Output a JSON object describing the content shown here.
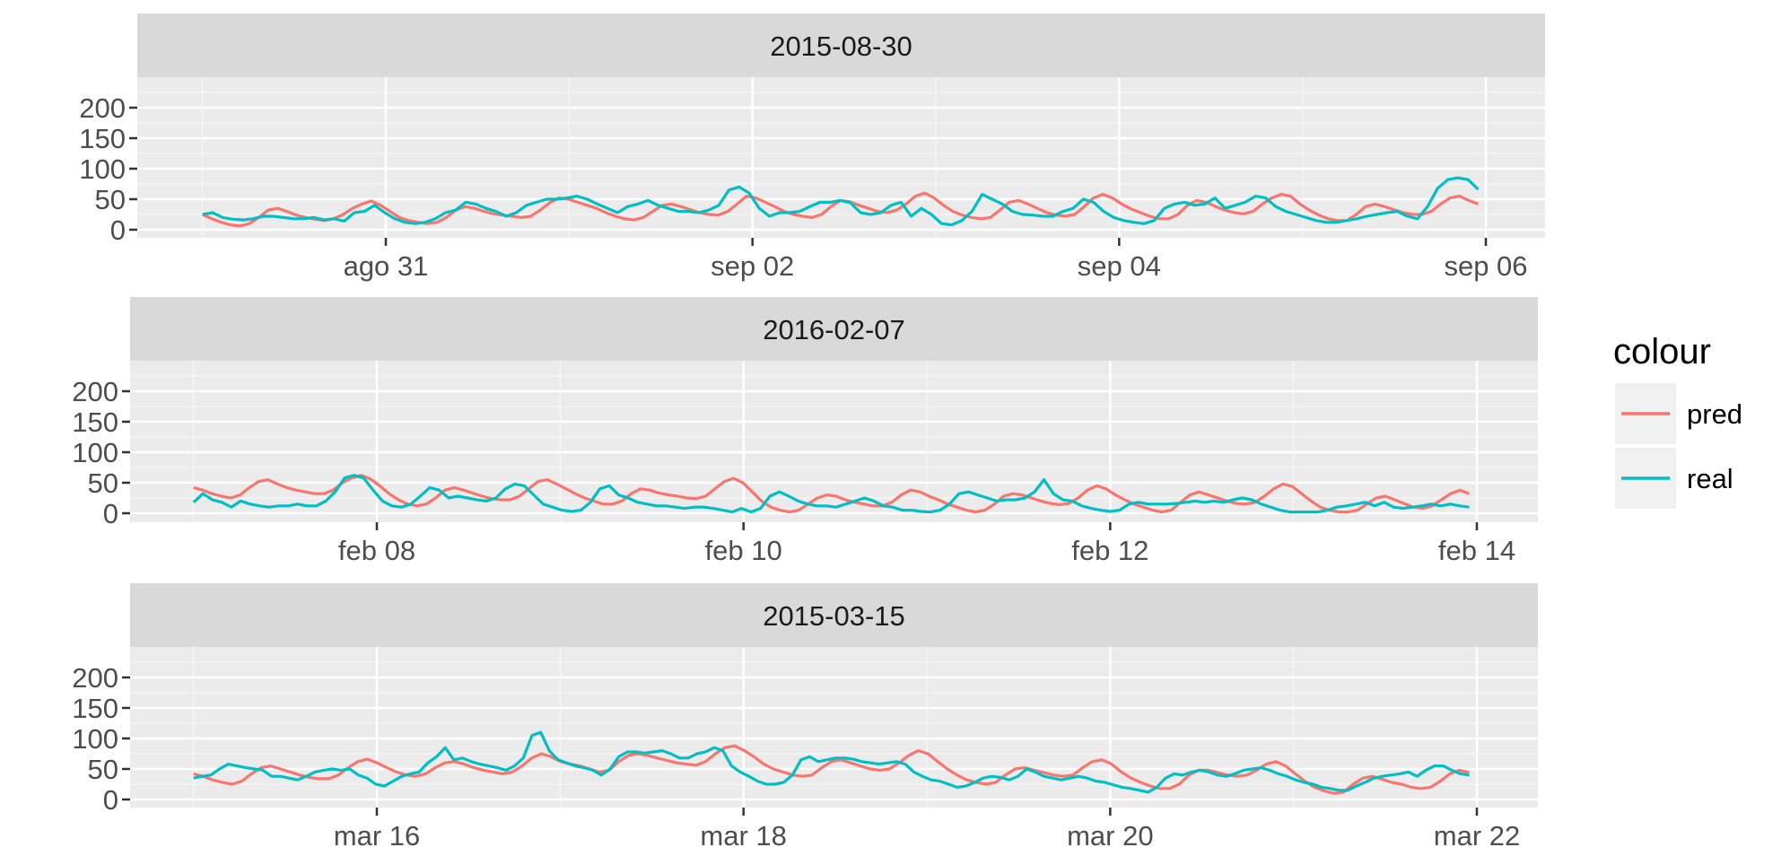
{
  "legend": {
    "title": "colour",
    "items": [
      {
        "label": "pred",
        "color": "#F8766D"
      },
      {
        "label": "real",
        "color": "#00BFC4"
      }
    ]
  },
  "chart_data": [
    {
      "type": "line",
      "title": "2015-08-30",
      "y_ticks": [
        0,
        50,
        100,
        150,
        200
      ],
      "ylim": [
        0,
        240
      ],
      "x_start": "2015-08-30 00:00",
      "x_end": "2015-09-05 23:00",
      "x_ticks": [
        {
          "at": "2015-08-31 00:00",
          "label": "ago 31"
        },
        {
          "at": "2015-09-02 00:00",
          "label": "sep 02"
        },
        {
          "at": "2015-09-04 00:00",
          "label": "sep 04"
        },
        {
          "at": "2015-09-06 00:00",
          "label": "sep 06"
        }
      ],
      "grid": true,
      "series": [
        {
          "name": "pred",
          "color": "#F8766D",
          "values": [
            25,
            18,
            12,
            8,
            6,
            10,
            20,
            32,
            35,
            30,
            24,
            20,
            17,
            15,
            18,
            25,
            35,
            42,
            47,
            40,
            30,
            20,
            15,
            12,
            10,
            12,
            20,
            32,
            38,
            35,
            30,
            26,
            24,
            22,
            20,
            22,
            32,
            44,
            52,
            50,
            45,
            40,
            35,
            28,
            22,
            18,
            16,
            20,
            30,
            40,
            42,
            38,
            33,
            28,
            25,
            24,
            30,
            42,
            55,
            52,
            45,
            38,
            30,
            25,
            22,
            20,
            25,
            38,
            48,
            46,
            40,
            35,
            30,
            28,
            32,
            42,
            55,
            60,
            52,
            40,
            30,
            24,
            20,
            18,
            20,
            32,
            45,
            48,
            42,
            35,
            28,
            24,
            22,
            25,
            38,
            52,
            58,
            52,
            42,
            34,
            28,
            22,
            18,
            18,
            25,
            40,
            48,
            45,
            38,
            32,
            28,
            26,
            30,
            42,
            52,
            58,
            55,
            42,
            32,
            24,
            18,
            15,
            15,
            25,
            38,
            42,
            38,
            33,
            28,
            25,
            25,
            30,
            42,
            52,
            55,
            48,
            42
          ]
        },
        {
          "name": "real",
          "color": "#00BFC4",
          "values": [
            25,
            28,
            20,
            17,
            16,
            18,
            22,
            22,
            20,
            18,
            18,
            20,
            16,
            18,
            14,
            28,
            30,
            40,
            28,
            18,
            12,
            10,
            12,
            18,
            28,
            32,
            45,
            42,
            35,
            30,
            22,
            28,
            40,
            45,
            50,
            50,
            52,
            55,
            50,
            42,
            35,
            28,
            38,
            42,
            48,
            40,
            35,
            30,
            30,
            28,
            32,
            40,
            65,
            70,
            60,
            35,
            22,
            28,
            28,
            30,
            38,
            45,
            45,
            48,
            44,
            28,
            25,
            28,
            40,
            45,
            22,
            35,
            25,
            10,
            8,
            15,
            30,
            58,
            50,
            42,
            30,
            25,
            24,
            22,
            22,
            30,
            35,
            50,
            45,
            30,
            20,
            15,
            12,
            10,
            15,
            35,
            42,
            45,
            40,
            42,
            52,
            35,
            40,
            45,
            55,
            52,
            38,
            30,
            25,
            20,
            15,
            12,
            12,
            15,
            18,
            22,
            25,
            28,
            30,
            22,
            18,
            38,
            68,
            82,
            85,
            82,
            66
          ]
        }
      ]
    },
    {
      "type": "line",
      "title": "2016-02-07",
      "y_ticks": [
        0,
        50,
        100,
        150,
        200
      ],
      "ylim": [
        0,
        240
      ],
      "x_start": "2016-02-07 00:00",
      "x_end": "2016-02-13 23:00",
      "x_ticks": [
        {
          "at": "2016-02-08 00:00",
          "label": "feb 08"
        },
        {
          "at": "2016-02-10 00:00",
          "label": "feb 10"
        },
        {
          "at": "2016-02-12 00:00",
          "label": "feb 12"
        },
        {
          "at": "2016-02-14 00:00",
          "label": "feb 14"
        }
      ],
      "grid": true,
      "series": [
        {
          "name": "pred",
          "color": "#F8766D",
          "values": [
            42,
            38,
            32,
            28,
            25,
            30,
            42,
            52,
            55,
            48,
            42,
            38,
            35,
            32,
            32,
            38,
            50,
            58,
            62,
            56,
            45,
            32,
            22,
            15,
            12,
            15,
            25,
            38,
            42,
            38,
            33,
            28,
            24,
            22,
            22,
            28,
            40,
            52,
            55,
            48,
            40,
            32,
            25,
            20,
            15,
            15,
            20,
            32,
            40,
            38,
            33,
            30,
            28,
            25,
            24,
            28,
            40,
            52,
            57,
            50,
            35,
            20,
            10,
            5,
            2,
            5,
            15,
            25,
            30,
            28,
            22,
            18,
            15,
            12,
            12,
            18,
            30,
            38,
            35,
            28,
            22,
            15,
            10,
            5,
            2,
            5,
            15,
            28,
            32,
            30,
            25,
            20,
            16,
            14,
            16,
            25,
            38,
            45,
            40,
            30,
            22,
            15,
            10,
            5,
            2,
            5,
            18,
            30,
            35,
            30,
            25,
            20,
            16,
            15,
            18,
            28,
            40,
            48,
            44,
            32,
            20,
            10,
            5,
            2,
            2,
            5,
            15,
            25,
            28,
            22,
            16,
            10,
            8,
            12,
            22,
            32,
            38,
            32
          ]
        },
        {
          "name": "real",
          "color": "#00BFC4",
          "values": [
            18,
            32,
            22,
            18,
            10,
            20,
            15,
            12,
            10,
            12,
            12,
            15,
            12,
            12,
            20,
            35,
            58,
            62,
            58,
            38,
            20,
            12,
            10,
            15,
            28,
            42,
            38,
            25,
            28,
            25,
            22,
            20,
            25,
            40,
            48,
            45,
            30,
            15,
            10,
            5,
            3,
            5,
            18,
            40,
            45,
            30,
            25,
            18,
            15,
            12,
            12,
            10,
            8,
            10,
            10,
            8,
            5,
            2,
            8,
            2,
            8,
            28,
            35,
            28,
            20,
            15,
            12,
            12,
            10,
            15,
            20,
            25,
            20,
            12,
            10,
            5,
            5,
            3,
            2,
            5,
            15,
            32,
            35,
            30,
            25,
            20,
            22,
            22,
            25,
            35,
            55,
            32,
            22,
            20,
            12,
            8,
            5,
            3,
            5,
            15,
            18,
            15,
            15,
            15,
            16,
            18,
            20,
            18,
            20,
            18,
            22,
            25,
            22,
            15,
            10,
            5,
            2,
            2,
            2,
            2,
            5,
            10,
            12,
            15,
            18,
            12,
            18,
            10,
            8,
            10,
            12,
            15,
            12,
            15,
            12,
            10
          ]
        }
      ]
    },
    {
      "type": "line",
      "title": "2015-03-15",
      "y_ticks": [
        0,
        50,
        100,
        150,
        200
      ],
      "ylim": [
        0,
        240
      ],
      "x_start": "2015-03-15 00:00",
      "x_end": "2015-03-21 23:00",
      "x_ticks": [
        {
          "at": "2015-03-16 00:00",
          "label": "mar 16"
        },
        {
          "at": "2015-03-18 00:00",
          "label": "mar 18"
        },
        {
          "at": "2015-03-20 00:00",
          "label": "mar 20"
        },
        {
          "at": "2015-03-22 00:00",
          "label": "mar 22"
        }
      ],
      "grid": true,
      "series": [
        {
          "name": "pred",
          "color": "#F8766D",
          "values": [
            42,
            38,
            32,
            28,
            25,
            30,
            42,
            52,
            55,
            50,
            45,
            40,
            36,
            34,
            34,
            40,
            52,
            62,
            66,
            60,
            52,
            45,
            40,
            38,
            42,
            52,
            60,
            62,
            58,
            52,
            48,
            45,
            42,
            45,
            55,
            68,
            75,
            70,
            62,
            58,
            55,
            50,
            45,
            48,
            62,
            72,
            75,
            72,
            68,
            64,
            60,
            58,
            56,
            62,
            75,
            85,
            88,
            80,
            70,
            58,
            50,
            45,
            40,
            38,
            40,
            52,
            62,
            65,
            60,
            55,
            50,
            48,
            50,
            60,
            72,
            80,
            75,
            62,
            50,
            40,
            32,
            28,
            25,
            28,
            40,
            50,
            52,
            48,
            44,
            40,
            38,
            40,
            52,
            62,
            65,
            58,
            45,
            35,
            28,
            22,
            18,
            18,
            25,
            40,
            48,
            48,
            44,
            40,
            38,
            40,
            48,
            58,
            62,
            55,
            42,
            30,
            20,
            14,
            10,
            12,
            25,
            35,
            38,
            33,
            28,
            25,
            20,
            18,
            20,
            30,
            42,
            48,
            44
          ]
        },
        {
          "name": "real",
          "color": "#00BFC4",
          "values": [
            35,
            38,
            40,
            50,
            58,
            55,
            52,
            50,
            48,
            38,
            38,
            35,
            32,
            38,
            45,
            48,
            50,
            48,
            50,
            40,
            35,
            25,
            22,
            30,
            38,
            42,
            45,
            60,
            70,
            85,
            65,
            68,
            62,
            58,
            55,
            52,
            48,
            55,
            68,
            105,
            110,
            80,
            65,
            60,
            55,
            52,
            48,
            40,
            50,
            70,
            78,
            78,
            76,
            78,
            80,
            75,
            68,
            68,
            75,
            78,
            85,
            80,
            55,
            45,
            38,
            30,
            25,
            25,
            28,
            40,
            65,
            70,
            62,
            65,
            68,
            68,
            66,
            62,
            60,
            58,
            60,
            62,
            58,
            45,
            38,
            32,
            30,
            25,
            20,
            22,
            28,
            35,
            38,
            36,
            32,
            38,
            50,
            45,
            38,
            35,
            32,
            35,
            38,
            35,
            30,
            28,
            24,
            20,
            18,
            15,
            12,
            20,
            35,
            42,
            40,
            45,
            48,
            45,
            40,
            38,
            42,
            48,
            50,
            52,
            48,
            42,
            38,
            32,
            28,
            25,
            20,
            18,
            15,
            15,
            22,
            28,
            35,
            38,
            40,
            42,
            45,
            38,
            48,
            55,
            55,
            48,
            42,
            40
          ]
        }
      ]
    }
  ]
}
